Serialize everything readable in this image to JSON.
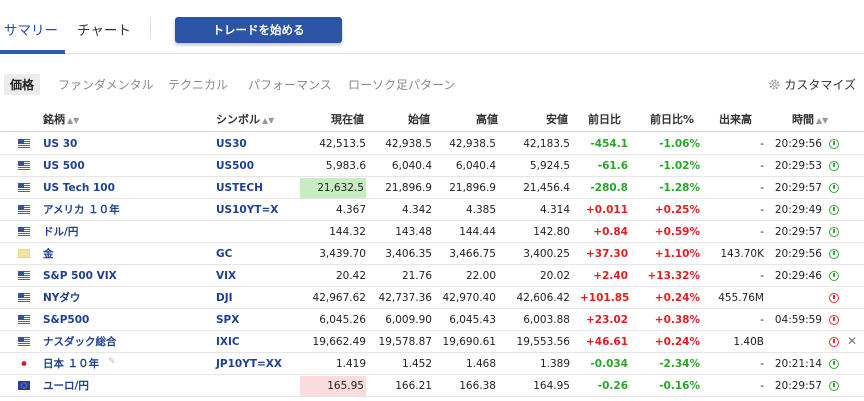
{
  "tabs": {
    "summary": "サマリー",
    "chart": "チャート",
    "trade_button": "トレードを始める"
  },
  "subtabs": {
    "price": "価格",
    "fundamental": "ファンダメンタル",
    "technical": "テクニカル",
    "performance": "パフォーマンス",
    "candles": "ローソク足パターン",
    "customize": "カスタマイズ"
  },
  "columns": {
    "name": "銘柄",
    "symbol": "シンボル",
    "current": "現在値",
    "open": "始値",
    "high": "高値",
    "low": "安値",
    "change": "前日比",
    "change_pct": "前日比%",
    "volume": "出来高",
    "time": "時間"
  },
  "rows": [
    {
      "name": "US 30",
      "symbol": "US30",
      "current": "42,513.5",
      "open": "42,938.5",
      "high": "42,938.5",
      "low": "42,183.5",
      "change": "-454.1",
      "change_pct": "-1.06%",
      "volume": "-",
      "time": "20:29:56",
      "status": "open",
      "dir": "neg",
      "flag": "us",
      "hl": ""
    },
    {
      "name": "US 500",
      "symbol": "US500",
      "current": "5,983.6",
      "open": "6,040.4",
      "high": "6,040.4",
      "low": "5,924.5",
      "change": "-61.6",
      "change_pct": "-1.02%",
      "volume": "-",
      "time": "20:29:53",
      "status": "open",
      "dir": "neg",
      "flag": "us",
      "hl": ""
    },
    {
      "name": "US Tech 100",
      "symbol": "USTECH",
      "current": "21,632.5",
      "open": "21,896.9",
      "high": "21,896.9",
      "low": "21,456.4",
      "change": "-280.8",
      "change_pct": "-1.28%",
      "volume": "-",
      "time": "20:29:57",
      "status": "open",
      "dir": "neg",
      "flag": "us",
      "hl": "g"
    },
    {
      "name": "アメリカ １０年",
      "symbol": "US10YT=X",
      "current": "4.367",
      "open": "4.342",
      "high": "4.385",
      "low": "4.314",
      "change": "+0.011",
      "change_pct": "+0.25%",
      "volume": "-",
      "time": "20:29:49",
      "status": "open",
      "dir": "pos",
      "flag": "us",
      "hl": ""
    },
    {
      "name": "ドル/円",
      "symbol": "",
      "current": "144.32",
      "open": "143.48",
      "high": "144.44",
      "low": "142.80",
      "change": "+0.84",
      "change_pct": "+0.59%",
      "volume": "-",
      "time": "20:29:57",
      "status": "open",
      "dir": "pos",
      "flag": "us",
      "hl": ""
    },
    {
      "name": "金",
      "symbol": "GC",
      "current": "3,439.70",
      "open": "3,406.35",
      "high": "3,466.75",
      "low": "3,400.25",
      "change": "+37.30",
      "change_pct": "+1.10%",
      "volume": "143.70K",
      "time": "20:29:56",
      "status": "open",
      "dir": "pos",
      "flag": "gold",
      "hl": ""
    },
    {
      "name": "S&P 500 VIX",
      "symbol": "VIX",
      "current": "20.42",
      "open": "21.76",
      "high": "22.00",
      "low": "20.02",
      "change": "+2.40",
      "change_pct": "+13.32%",
      "volume": "-",
      "time": "20:29:46",
      "status": "open",
      "dir": "pos",
      "flag": "us",
      "hl": ""
    },
    {
      "name": "NYダウ",
      "symbol": "DJI",
      "current": "42,967.62",
      "open": "42,737.36",
      "high": "42,970.40",
      "low": "42,606.42",
      "change": "+101.85",
      "change_pct": "+0.24%",
      "volume": "455.76M",
      "time": "",
      "status": "closed",
      "dir": "pos",
      "flag": "us",
      "hl": ""
    },
    {
      "name": "S&P500",
      "symbol": "SPX",
      "current": "6,045.26",
      "open": "6,009.90",
      "high": "6,045.43",
      "low": "6,003.88",
      "change": "+23.02",
      "change_pct": "+0.38%",
      "volume": "-",
      "time": "04:59:59",
      "status": "closed",
      "dir": "pos",
      "flag": "us",
      "hl": ""
    },
    {
      "name": "ナスダック総合",
      "symbol": "IXIC",
      "current": "19,662.49",
      "open": "19,578.87",
      "high": "19,690.61",
      "low": "19,553.56",
      "change": "+46.61",
      "change_pct": "+0.24%",
      "volume": "1.40B",
      "time": "",
      "status": "closed",
      "dir": "pos",
      "flag": "us",
      "hl": "",
      "close": "✕"
    },
    {
      "name": "日本 １０年",
      "symbol": "JP10YT=XX",
      "current": "1.419",
      "open": "1.452",
      "high": "1.468",
      "low": "1.389",
      "change": "-0.034",
      "change_pct": "-2.34%",
      "volume": "-",
      "time": "20:21:14",
      "status": "open",
      "dir": "neg",
      "flag": "jp",
      "hl": ""
    },
    {
      "name": "ユーロ/円",
      "symbol": "",
      "current": "165.95",
      "open": "166.21",
      "high": "166.38",
      "low": "164.95",
      "change": "-0.26",
      "change_pct": "-0.16%",
      "volume": "-",
      "time": "20:29:57",
      "status": "open",
      "dir": "neg",
      "flag": "eu",
      "hl": "r"
    }
  ]
}
